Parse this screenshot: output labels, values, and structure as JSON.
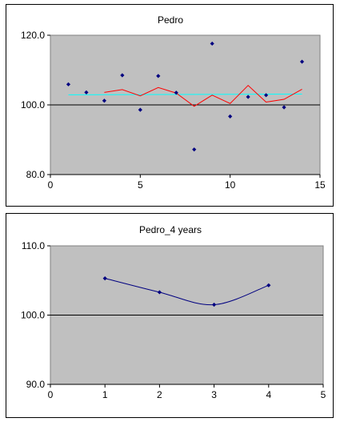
{
  "chart_data": [
    {
      "type": "scatter",
      "title": "Pedro",
      "xlim": [
        0,
        15
      ],
      "ylim": [
        80,
        120
      ],
      "x_ticks": [
        "0",
        "5",
        "10",
        "15"
      ],
      "y_ticks": [
        "80.0",
        "100.0",
        "120.0"
      ],
      "reference_line": 100,
      "colors": {
        "plot_bg": "#c0c0c0",
        "points": "#000080",
        "moving_avg": "#ff0000",
        "trend": "#00ffff"
      },
      "series": [
        {
          "kind": "points",
          "x": [
            1,
            2,
            3,
            4,
            5,
            6,
            7,
            8,
            9,
            10,
            11,
            12,
            13,
            14
          ],
          "y": [
            105.9,
            103.6,
            101.2,
            108.5,
            98.6,
            108.3,
            103.5,
            87.2,
            117.6,
            96.7,
            102.3,
            102.8,
            99.3,
            112.4
          ]
        },
        {
          "kind": "line",
          "x": [
            3,
            4,
            5,
            6,
            7,
            8,
            9,
            10,
            11,
            12,
            13,
            14
          ],
          "y": [
            103.6,
            104.4,
            102.6,
            105.0,
            103.4,
            99.6,
            102.8,
            100.4,
            105.6,
            100.8,
            101.6,
            104.5
          ]
        },
        {
          "kind": "trend",
          "x": [
            1,
            14
          ],
          "y": [
            102.9,
            103.1
          ]
        }
      ]
    },
    {
      "type": "line",
      "title": "Pedro_4 years",
      "xlim": [
        0,
        5
      ],
      "ylim": [
        90,
        110
      ],
      "x_ticks": [
        "0",
        "1",
        "2",
        "3",
        "4",
        "5"
      ],
      "y_ticks": [
        "90.0",
        "100.0",
        "110.0"
      ],
      "reference_line": 100,
      "colors": {
        "plot_bg": "#c0c0c0",
        "line": "#000080"
      },
      "series": [
        {
          "x": [
            1,
            2,
            3,
            4
          ],
          "y": [
            105.3,
            103.3,
            101.5,
            104.3
          ]
        }
      ]
    }
  ]
}
